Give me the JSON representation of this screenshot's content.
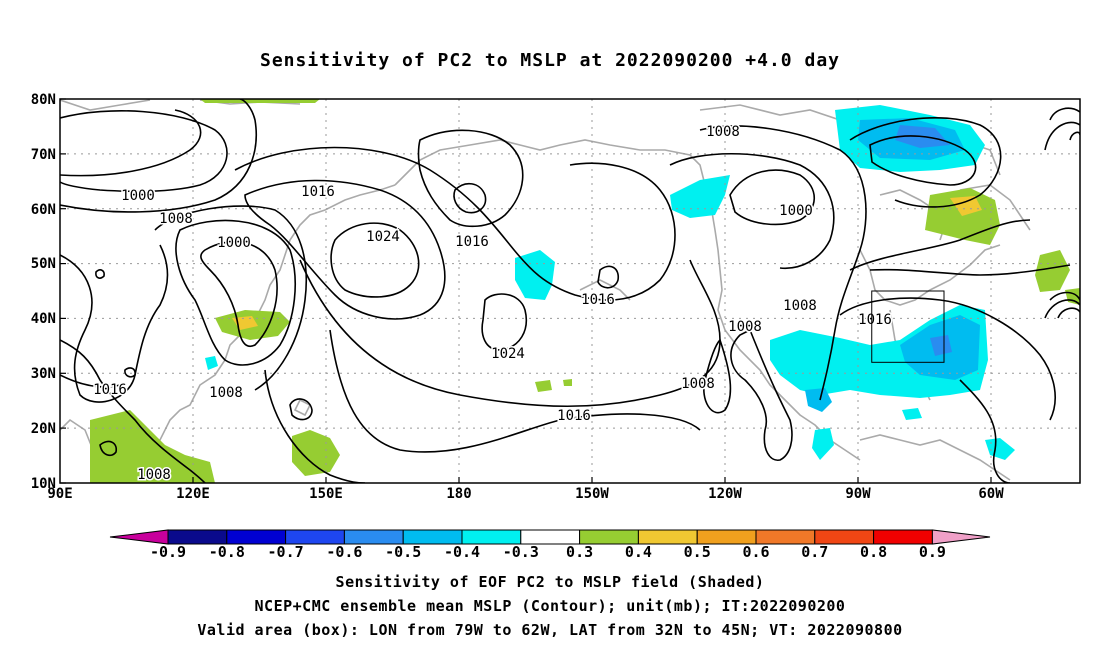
{
  "title": "Sensitivity of PC2 to MSLP at 2022090200 +4.0 day",
  "lat_labels": [
    "80N",
    "70N",
    "60N",
    "50N",
    "40N",
    "30N",
    "20N",
    "10N"
  ],
  "lon_labels": [
    "90E",
    "120E",
    "150E",
    "180",
    "150W",
    "120W",
    "90W",
    "60W"
  ],
  "contour_labels": [
    "1008",
    "1000",
    "1008",
    "1016",
    "1024",
    "1000",
    "1016",
    "1016",
    "1008",
    "1008",
    "1016",
    "1000",
    "1024",
    "1016",
    "1008",
    "1016",
    "1008",
    "1008"
  ],
  "colorbar": {
    "labels": [
      "-0.9",
      "-0.8",
      "-0.7",
      "-0.6",
      "-0.5",
      "-0.4",
      "-0.3",
      "0.3",
      "0.4",
      "0.5",
      "0.6",
      "0.7",
      "0.8",
      "0.9"
    ],
    "colors": [
      "#0a0a8c",
      "#0000d2",
      "#1e46f0",
      "#2a8cf0",
      "#00bcf0",
      "#00f0f0",
      "#ffffff",
      "#96cd32",
      "#f0c832",
      "#f0a01e",
      "#f07828",
      "#f04614",
      "#f00000"
    ],
    "low_extension_color": "#c8009c",
    "high_extension_color": "#f0a0c8"
  },
  "colors": {
    "positive_04": "#96cd32",
    "positive_05": "#f0c832",
    "negative_04": "#00f0f0",
    "negative_05": "#00bcf0",
    "negative_06": "#2a8cf0",
    "coast": "#aaaaaa",
    "contour": "#000000"
  },
  "valid_box": {
    "lon_min": -79,
    "lon_max": -62,
    "lat_min": 32,
    "lat_max": 45
  },
  "captions": {
    "line1": "Sensitivity of EOF PC2 to MSLP field (Shaded)",
    "line2": "NCEP+CMC ensemble mean MSLP (Contour); unit(mb); IT:2022090200",
    "line3": "Valid area (box): LON from 79W to 62W, LAT from 32N to 45N; VT: 2022090800"
  }
}
